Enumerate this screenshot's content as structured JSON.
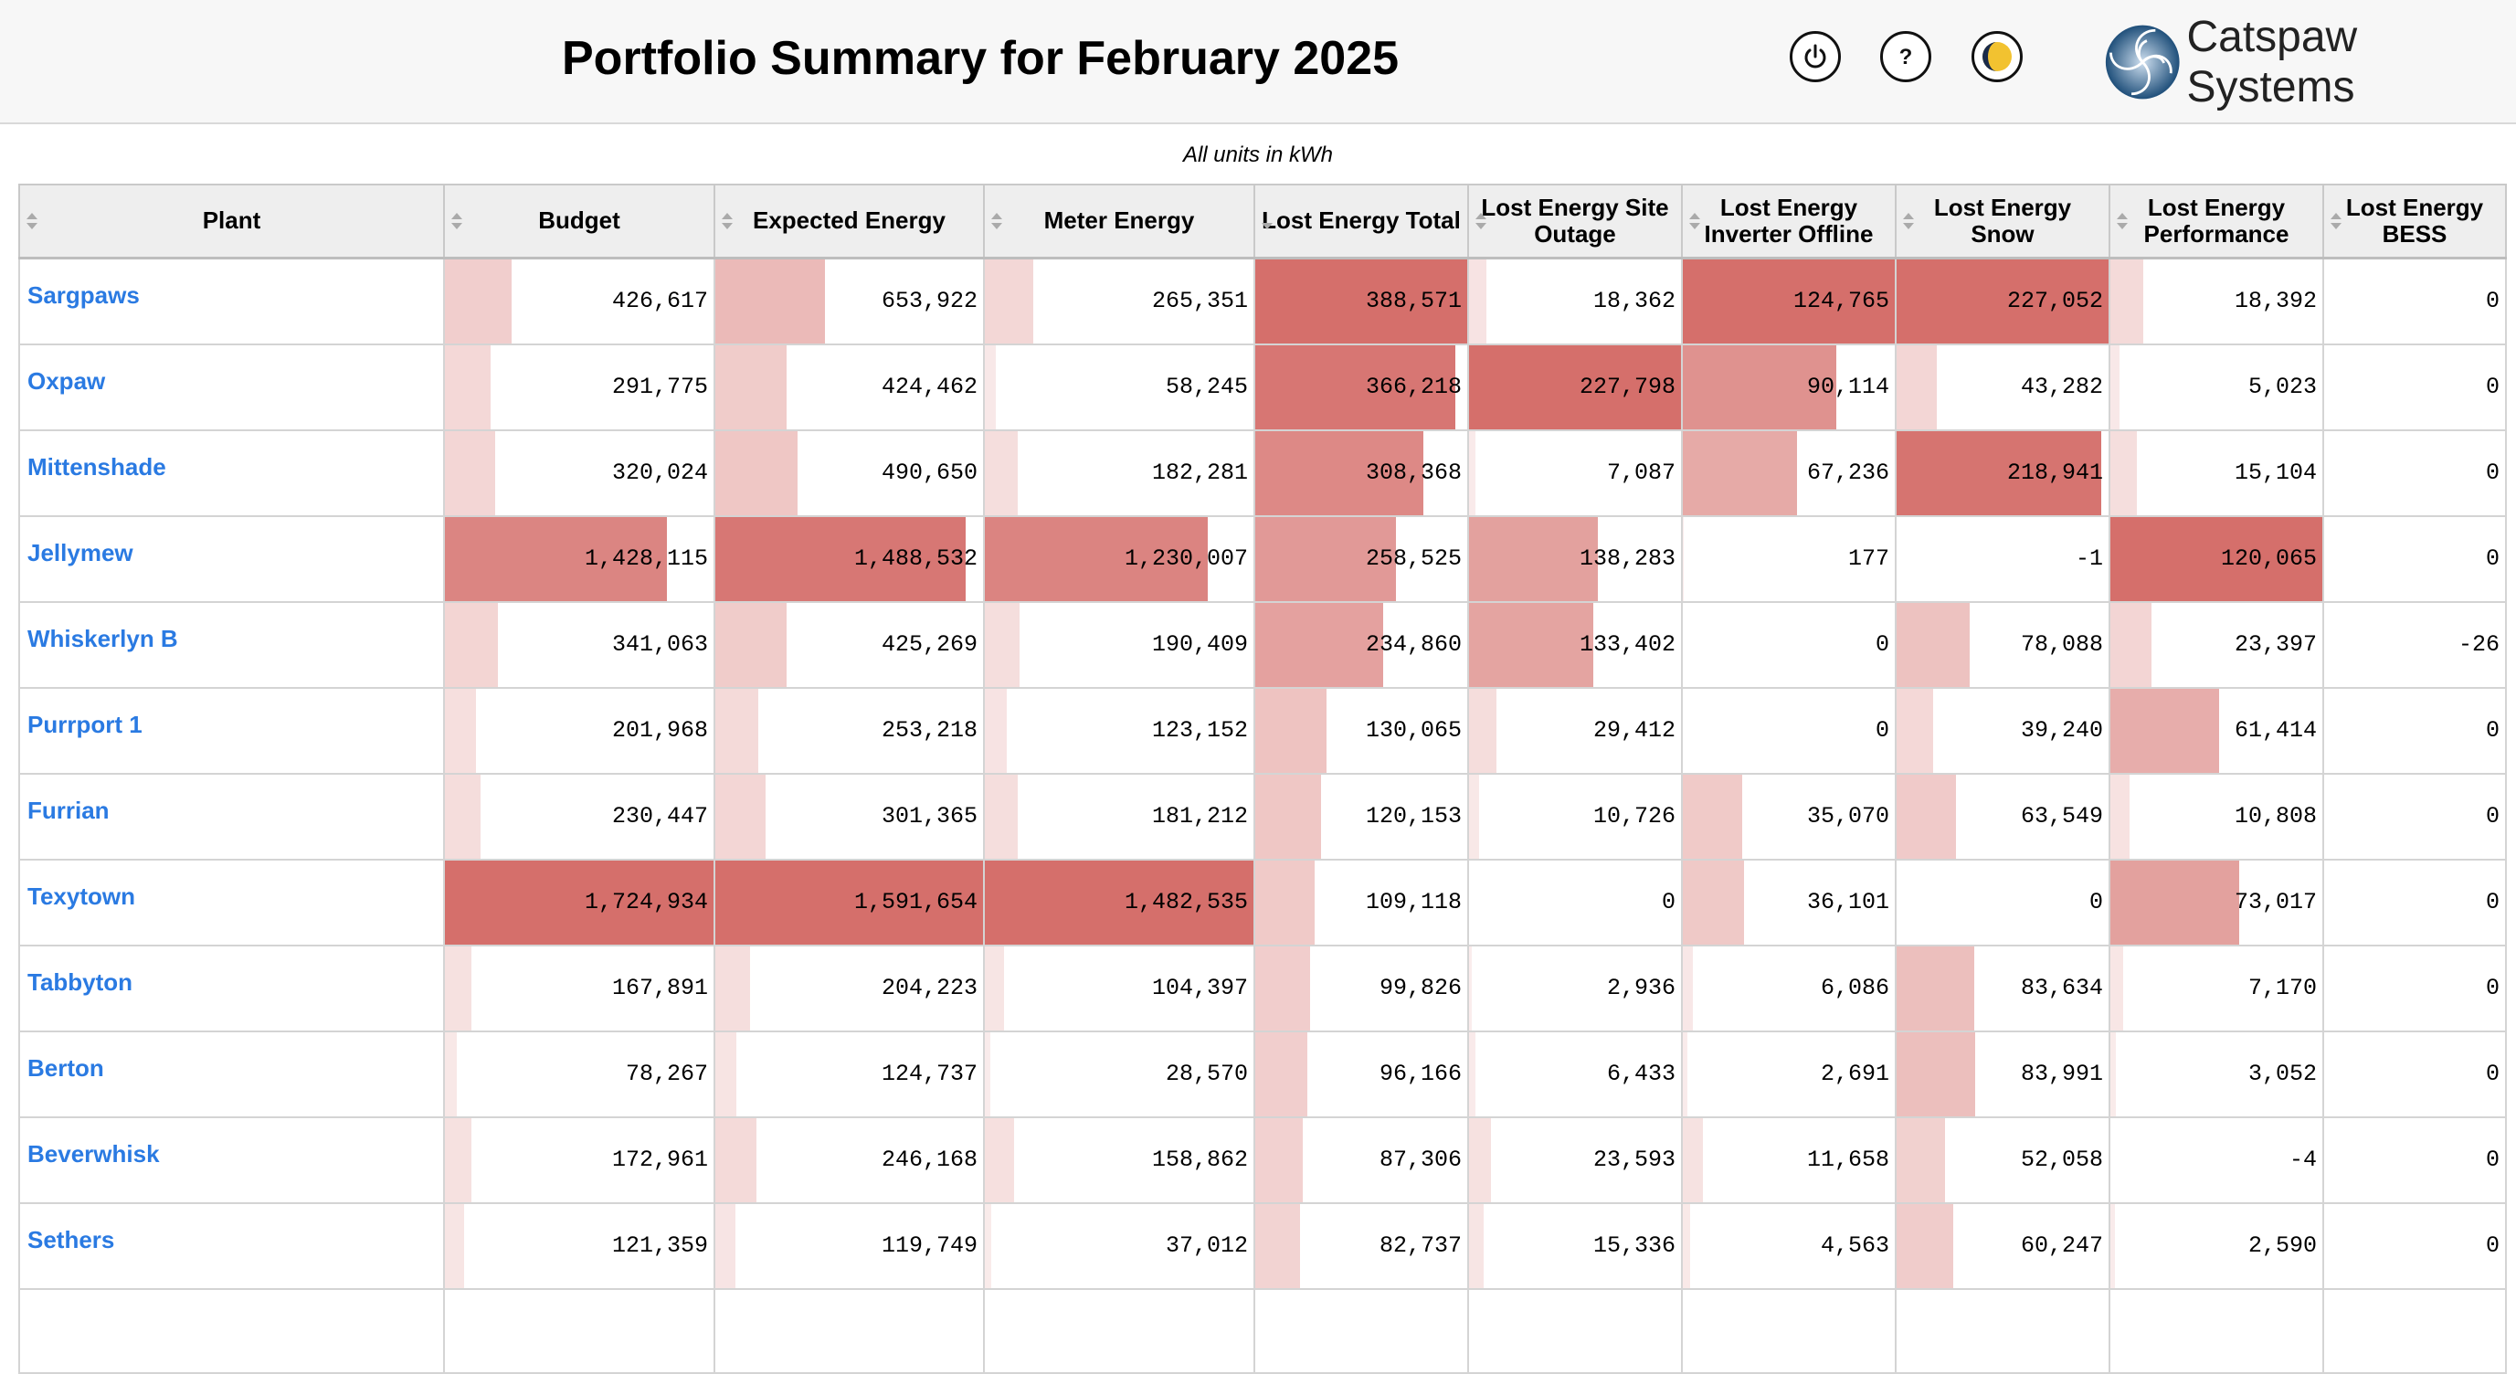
{
  "header": {
    "title": "Portfolio Summary for February 2025",
    "brand_name": "Catspaw Systems",
    "buttons": [
      {
        "icon": "power-icon"
      },
      {
        "icon": "help-icon"
      },
      {
        "icon": "theme-toggle-icon"
      }
    ]
  },
  "units_note": "All units in kWh",
  "colors": {
    "bar": "#d56f6b",
    "link": "#2a7ae2",
    "header_bg": "#f7f7f7"
  },
  "table": {
    "columns": [
      {
        "label": "Plant",
        "sort": "none"
      },
      {
        "label": "Budget",
        "sort": "none"
      },
      {
        "label": "Expected Energy",
        "sort": "none"
      },
      {
        "label": "Meter Energy",
        "sort": "none"
      },
      {
        "label": "Lost Energy Total",
        "sort": "desc"
      },
      {
        "label": "Lost Energy Site Outage",
        "sort": "none"
      },
      {
        "label": "Lost Energy Inverter Offline",
        "sort": "none"
      },
      {
        "label": "Lost Energy Snow",
        "sort": "none"
      },
      {
        "label": "Lost Energy Performance",
        "sort": "none"
      },
      {
        "label": "Lost Energy BESS",
        "sort": "none"
      }
    ],
    "rows": [
      {
        "plant": "Sargpaws",
        "values": [
          "426,617",
          "653,922",
          "265,351",
          "388,571",
          "18,362",
          "124,765",
          "227,052",
          "18,392",
          "0"
        ]
      },
      {
        "plant": "Oxpaw",
        "values": [
          "291,775",
          "424,462",
          "58,245",
          "366,218",
          "227,798",
          "90,114",
          "43,282",
          "5,023",
          "0"
        ]
      },
      {
        "plant": "Mittenshade",
        "values": [
          "320,024",
          "490,650",
          "182,281",
          "308,368",
          "7,087",
          "67,236",
          "218,941",
          "15,104",
          "0"
        ]
      },
      {
        "plant": "Jellymew",
        "values": [
          "1,428,115",
          "1,488,532",
          "1,230,007",
          "258,525",
          "138,283",
          "177",
          "-1",
          "120,065",
          "0"
        ]
      },
      {
        "plant": "Whiskerlyn B",
        "values": [
          "341,063",
          "425,269",
          "190,409",
          "234,860",
          "133,402",
          "0",
          "78,088",
          "23,397",
          "-26"
        ]
      },
      {
        "plant": "Purrport 1",
        "values": [
          "201,968",
          "253,218",
          "123,152",
          "130,065",
          "29,412",
          "0",
          "39,240",
          "61,414",
          "0"
        ]
      },
      {
        "plant": "Furrian",
        "values": [
          "230,447",
          "301,365",
          "181,212",
          "120,153",
          "10,726",
          "35,070",
          "63,549",
          "10,808",
          "0"
        ]
      },
      {
        "plant": "Texytown",
        "values": [
          "1,724,934",
          "1,591,654",
          "1,482,535",
          "109,118",
          "0",
          "36,101",
          "0",
          "73,017",
          "0"
        ]
      },
      {
        "plant": "Tabbyton",
        "values": [
          "167,891",
          "204,223",
          "104,397",
          "99,826",
          "2,936",
          "6,086",
          "83,634",
          "7,170",
          "0"
        ]
      },
      {
        "plant": "Berton",
        "values": [
          "78,267",
          "124,737",
          "28,570",
          "96,166",
          "6,433",
          "2,691",
          "83,991",
          "3,052",
          "0"
        ]
      },
      {
        "plant": "Beverwhisk",
        "values": [
          "172,961",
          "246,168",
          "158,862",
          "87,306",
          "23,593",
          "11,658",
          "52,058",
          "-4",
          "0"
        ]
      },
      {
        "plant": "Sethers",
        "values": [
          "121,359",
          "119,749",
          "37,012",
          "82,737",
          "15,336",
          "4,563",
          "60,247",
          "2,590",
          "0"
        ]
      },
      {
        "plant": "",
        "values": [
          "",
          "",
          "",
          "",
          "",
          "",
          "",
          "",
          ""
        ]
      }
    ]
  }
}
